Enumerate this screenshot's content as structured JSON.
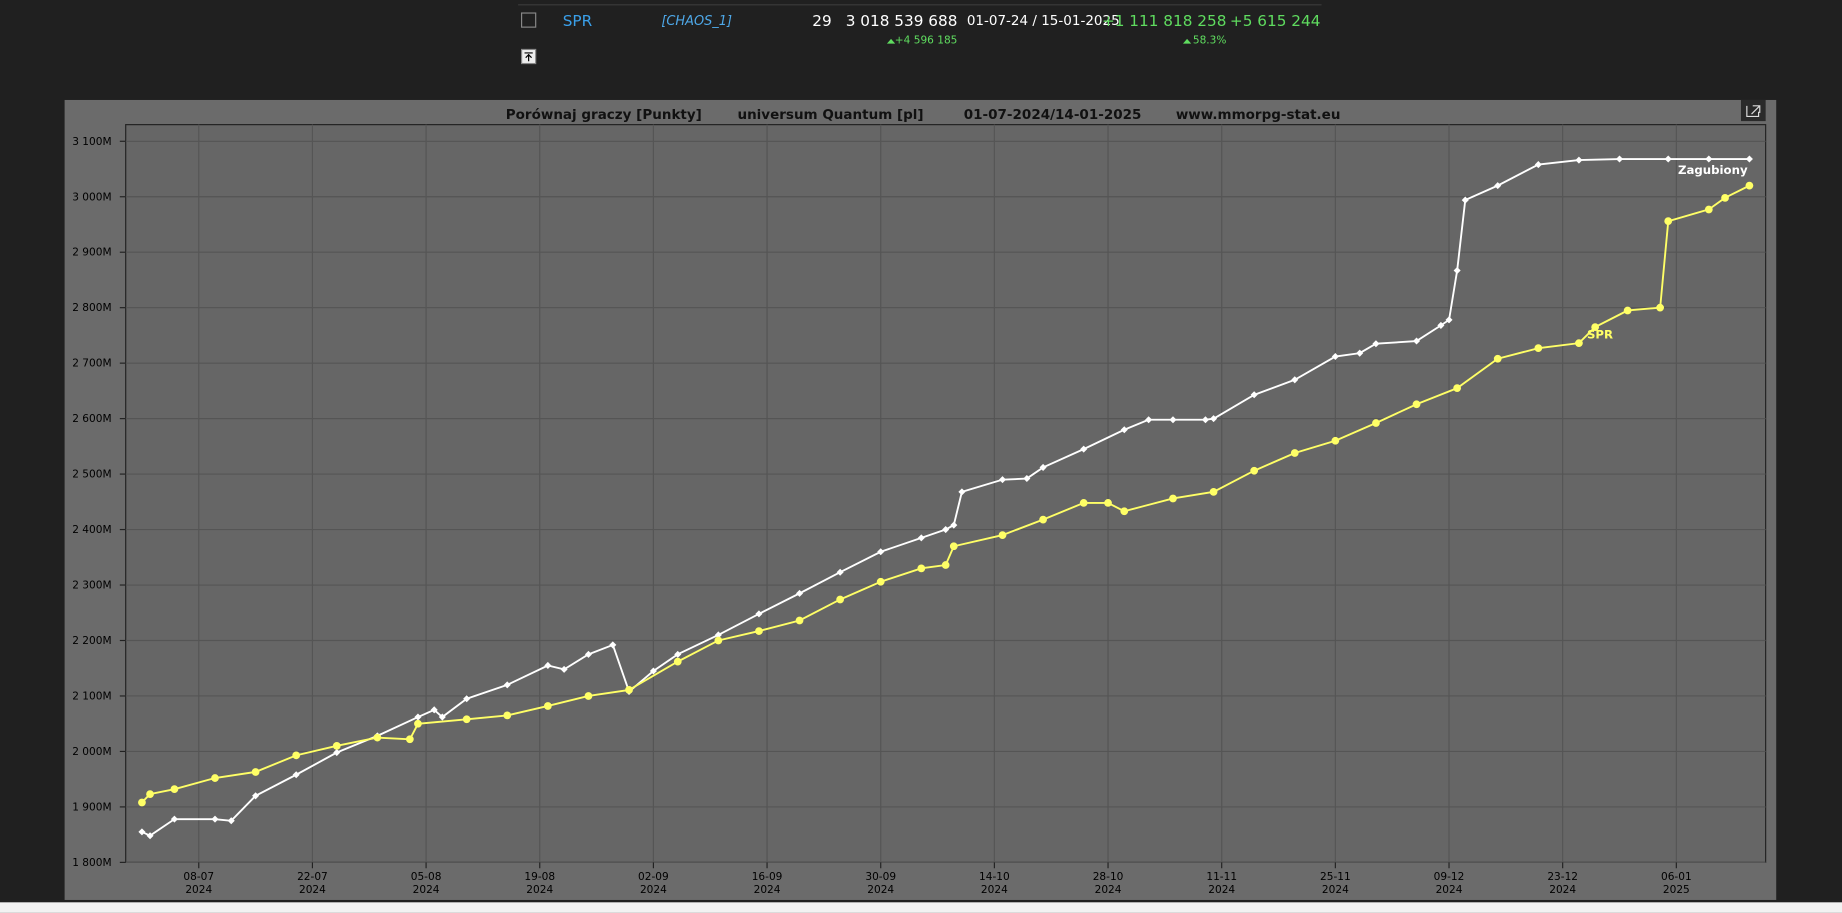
{
  "players_table": {
    "rows": [
      {
        "name": "SPR",
        "alliance": "[CHAOS_1]",
        "rank": "29",
        "points": "3 018 539 688",
        "points_change": "+4 596 185",
        "period": "01-07-24 / 15-01-2025",
        "gain": "+1 111 818 258",
        "gain_percent": "58.3%",
        "last_change": "+5 615 244"
      }
    ]
  },
  "chart_data": {
    "type": "line",
    "title": "Porównaj graczy [Punkty]",
    "subtitle": "universum Quantum [pl]",
    "date_range": "01-07-2024/14-01-2025",
    "source": "www.mmorpg-stat.eu",
    "xlim": [
      "2024-06-29",
      "2025-01-17"
    ],
    "xticks": [
      {
        "value": "2024-07-08",
        "label": "08-07\n2024"
      },
      {
        "value": "2024-07-22",
        "label": "22-07\n2024"
      },
      {
        "value": "2024-08-05",
        "label": "05-08\n2024"
      },
      {
        "value": "2024-08-19",
        "label": "19-08\n2024"
      },
      {
        "value": "2024-09-02",
        "label": "02-09\n2024"
      },
      {
        "value": "2024-09-16",
        "label": "16-09\n2024"
      },
      {
        "value": "2024-09-30",
        "label": "30-09\n2024"
      },
      {
        "value": "2024-10-14",
        "label": "14-10\n2024"
      },
      {
        "value": "2024-10-28",
        "label": "28-10\n2024"
      },
      {
        "value": "2024-11-11",
        "label": "11-11\n2024"
      },
      {
        "value": "2024-11-25",
        "label": "25-11\n2024"
      },
      {
        "value": "2024-12-09",
        "label": "09-12\n2024"
      },
      {
        "value": "2024-12-23",
        "label": "23-12\n2024"
      },
      {
        "value": "2025-01-06",
        "label": "06-01\n2025"
      }
    ],
    "ylim": [
      1800,
      3130
    ],
    "yticks": [
      {
        "value": 1800,
        "label": "1 800M"
      },
      {
        "value": 1900,
        "label": "1 900M"
      },
      {
        "value": 2000,
        "label": "2 000M"
      },
      {
        "value": 2100,
        "label": "2 100M"
      },
      {
        "value": 2200,
        "label": "2 200M"
      },
      {
        "value": 2300,
        "label": "2 300M"
      },
      {
        "value": 2400,
        "label": "2 400M"
      },
      {
        "value": 2500,
        "label": "2 500M"
      },
      {
        "value": 2600,
        "label": "2 600M"
      },
      {
        "value": 2700,
        "label": "2 700M"
      },
      {
        "value": 2800,
        "label": "2 800M"
      },
      {
        "value": 2900,
        "label": "2 900M"
      },
      {
        "value": 3000,
        "label": "3 000M"
      },
      {
        "value": 3100,
        "label": "3 100M"
      }
    ],
    "grid": true,
    "series": [
      {
        "name": "Zagubiony",
        "color": "#ffffff",
        "marker": "diamond",
        "x": [
          "2024-07-01",
          "2024-07-02",
          "2024-07-05",
          "2024-07-10",
          "2024-07-12",
          "2024-07-15",
          "2024-07-20",
          "2024-07-25",
          "2024-07-30",
          "2024-08-04",
          "2024-08-06",
          "2024-08-07",
          "2024-08-10",
          "2024-08-15",
          "2024-08-20",
          "2024-08-22",
          "2024-08-25",
          "2024-08-28",
          "2024-08-30",
          "2024-09-02",
          "2024-09-05",
          "2024-09-10",
          "2024-09-15",
          "2024-09-20",
          "2024-09-25",
          "2024-09-30",
          "2024-10-05",
          "2024-10-08",
          "2024-10-09",
          "2024-10-10",
          "2024-10-15",
          "2024-10-18",
          "2024-10-20",
          "2024-10-25",
          "2024-10-30",
          "2024-11-02",
          "2024-11-05",
          "2024-11-09",
          "2024-11-10",
          "2024-11-15",
          "2024-11-20",
          "2024-11-25",
          "2024-11-28",
          "2024-11-30",
          "2024-12-05",
          "2024-12-08",
          "2024-12-09",
          "2024-12-10",
          "2024-12-11",
          "2024-12-15",
          "2024-12-20",
          "2024-12-25",
          "2024-12-30",
          "2025-01-05",
          "2025-01-10",
          "2025-01-15"
        ],
        "values": [
          1855,
          1848,
          1878,
          1878,
          1875,
          1920,
          1958,
          1998,
          2028,
          2062,
          2075,
          2062,
          2095,
          2120,
          2155,
          2148,
          2175,
          2192,
          2108,
          2145,
          2175,
          2210,
          2248,
          2285,
          2323,
          2360,
          2385,
          2400,
          2408,
          2468,
          2490,
          2492,
          2512,
          2545,
          2580,
          2598,
          2598,
          2598,
          2600,
          2643,
          2670,
          2712,
          2718,
          2735,
          2740,
          2768,
          2778,
          2867,
          2994,
          3020,
          3058,
          3066,
          3068,
          3068,
          3068,
          3068
        ]
      },
      {
        "name": "SPR",
        "color": "#ffff66",
        "marker": "circle",
        "x": [
          "2024-07-01",
          "2024-07-02",
          "2024-07-05",
          "2024-07-10",
          "2024-07-15",
          "2024-07-20",
          "2024-07-25",
          "2024-07-30",
          "2024-08-03",
          "2024-08-04",
          "2024-08-10",
          "2024-08-15",
          "2024-08-20",
          "2024-08-25",
          "2024-08-30",
          "2024-09-05",
          "2024-09-10",
          "2024-09-15",
          "2024-09-20",
          "2024-09-25",
          "2024-09-30",
          "2024-10-05",
          "2024-10-08",
          "2024-10-09",
          "2024-10-15",
          "2024-10-20",
          "2024-10-25",
          "2024-10-28",
          "2024-10-30",
          "2024-11-05",
          "2024-11-10",
          "2024-11-15",
          "2024-11-20",
          "2024-11-25",
          "2024-11-30",
          "2024-12-05",
          "2024-12-10",
          "2024-12-15",
          "2024-12-20",
          "2024-12-25",
          "2024-12-27",
          "2024-12-31",
          "2025-01-04",
          "2025-01-05",
          "2025-01-10",
          "2025-01-12",
          "2025-01-15"
        ],
        "values": [
          1908,
          1923,
          1932,
          1952,
          1963,
          1993,
          2010,
          2025,
          2022,
          2050,
          2058,
          2065,
          2082,
          2100,
          2111,
          2162,
          2200,
          2217,
          2236,
          2274,
          2306,
          2330,
          2336,
          2370,
          2390,
          2418,
          2448,
          2448,
          2433,
          2456,
          2468,
          2506,
          2538,
          2560,
          2592,
          2626,
          2655,
          2708,
          2727,
          2736,
          2765,
          2795,
          2800,
          2956,
          2977,
          2998,
          3020
        ]
      }
    ]
  }
}
